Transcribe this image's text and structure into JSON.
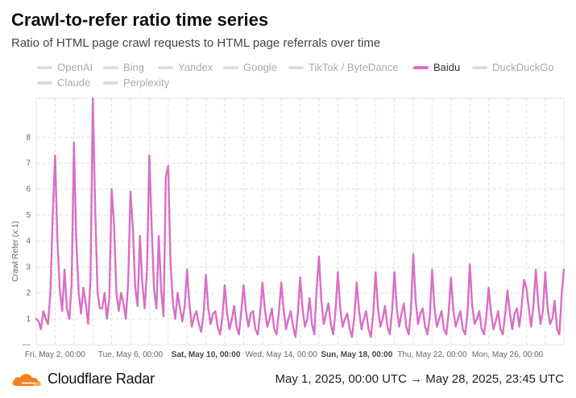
{
  "header": {
    "title": "Crawl-to-refer ratio time series",
    "subtitle": "Ratio of HTML page crawl requests to HTML page referrals over time"
  },
  "legend": {
    "items": [
      {
        "label": "OpenAI",
        "active": false
      },
      {
        "label": "Bing",
        "active": false
      },
      {
        "label": "Yandex",
        "active": false
      },
      {
        "label": "Google",
        "active": false
      },
      {
        "label": "TikTok / ByteDance",
        "active": false
      },
      {
        "label": "Baidu",
        "active": true
      },
      {
        "label": "DuckDuckGo",
        "active": false
      },
      {
        "label": "Claude",
        "active": false
      },
      {
        "label": "Perplexity",
        "active": false
      }
    ]
  },
  "colors": {
    "active_series": "#d96fc4",
    "inactive": "#dddddd",
    "grid": "#e3e3e3"
  },
  "chart_data": {
    "type": "line",
    "ylabel": "Crawl:Refer (x:1)",
    "ylim": [
      0,
      9.5
    ],
    "yticks": [
      1,
      2,
      3,
      4,
      5,
      6,
      7,
      8
    ],
    "x_range": [
      "2025-05-01T00:00",
      "2025-05-28T23:45"
    ],
    "xticks": [
      {
        "label": "Fri, May 2, 00:00",
        "date": "2025-05-02",
        "bold": false
      },
      {
        "label": "Tue, May 6, 00:00",
        "date": "2025-05-06",
        "bold": false
      },
      {
        "label": "Sat, May 10, 00:00",
        "date": "2025-05-10",
        "bold": true
      },
      {
        "label": "Wed, May 14, 00:00",
        "date": "2025-05-14",
        "bold": false
      },
      {
        "label": "Sun, May 18, 00:00",
        "date": "2025-05-18",
        "bold": true
      },
      {
        "label": "Thu, May 22, 00:00",
        "date": "2025-05-22",
        "bold": false
      },
      {
        "label": "Mon, May 26, 00:00",
        "date": "2025-05-26",
        "bold": false
      }
    ],
    "grid": true,
    "series": [
      {
        "name": "Baidu",
        "points": [
          [
            "2025-05-01T00:00",
            1.0
          ],
          [
            "2025-05-01T03:00",
            0.9
          ],
          [
            "2025-05-01T06:00",
            0.6
          ],
          [
            "2025-05-01T09:00",
            1.3
          ],
          [
            "2025-05-01T12:00",
            1.0
          ],
          [
            "2025-05-01T15:00",
            0.8
          ],
          [
            "2025-05-01T18:00",
            2.0
          ],
          [
            "2025-05-01T21:00",
            5.0
          ],
          [
            "2025-05-02T00:00",
            7.3
          ],
          [
            "2025-05-02T03:00",
            4.0
          ],
          [
            "2025-05-02T06:00",
            2.1
          ],
          [
            "2025-05-02T09:00",
            1.3
          ],
          [
            "2025-05-02T12:00",
            2.9
          ],
          [
            "2025-05-02T15:00",
            1.4
          ],
          [
            "2025-05-02T18:00",
            1.0
          ],
          [
            "2025-05-02T21:00",
            2.3
          ],
          [
            "2025-05-03T00:00",
            7.8
          ],
          [
            "2025-05-03T03:00",
            4.0
          ],
          [
            "2025-05-03T06:00",
            2.0
          ],
          [
            "2025-05-03T09:00",
            1.2
          ],
          [
            "2025-05-03T12:00",
            2.2
          ],
          [
            "2025-05-03T15:00",
            1.6
          ],
          [
            "2025-05-03T18:00",
            0.8
          ],
          [
            "2025-05-03T21:00",
            2.5
          ],
          [
            "2025-05-04T00:00",
            9.5
          ],
          [
            "2025-05-04T03:00",
            5.3
          ],
          [
            "2025-05-04T06:00",
            2.0
          ],
          [
            "2025-05-04T09:00",
            1.4
          ],
          [
            "2025-05-04T12:00",
            1.4
          ],
          [
            "2025-05-04T15:00",
            2.0
          ],
          [
            "2025-05-04T18:00",
            1.0
          ],
          [
            "2025-05-04T21:00",
            1.8
          ],
          [
            "2025-05-05T00:00",
            6.0
          ],
          [
            "2025-05-05T03:00",
            4.7
          ],
          [
            "2025-05-05T06:00",
            2.0
          ],
          [
            "2025-05-05T09:00",
            1.3
          ],
          [
            "2025-05-05T12:00",
            2.0
          ],
          [
            "2025-05-05T15:00",
            1.6
          ],
          [
            "2025-05-05T18:00",
            1.0
          ],
          [
            "2025-05-05T21:00",
            2.4
          ],
          [
            "2025-05-06T00:00",
            5.9
          ],
          [
            "2025-05-06T03:00",
            4.5
          ],
          [
            "2025-05-06T06:00",
            2.2
          ],
          [
            "2025-05-06T09:00",
            1.5
          ],
          [
            "2025-05-06T12:00",
            4.2
          ],
          [
            "2025-05-06T15:00",
            2.4
          ],
          [
            "2025-05-06T18:00",
            1.4
          ],
          [
            "2025-05-06T21:00",
            2.9
          ],
          [
            "2025-05-07T00:00",
            7.3
          ],
          [
            "2025-05-07T03:00",
            4.5
          ],
          [
            "2025-05-07T06:00",
            2.1
          ],
          [
            "2025-05-07T09:00",
            1.4
          ],
          [
            "2025-05-07T12:00",
            4.2
          ],
          [
            "2025-05-07T15:00",
            2.1
          ],
          [
            "2025-05-07T18:00",
            1.1
          ],
          [
            "2025-05-07T21:00",
            6.5
          ],
          [
            "2025-05-08T00:00",
            6.9
          ],
          [
            "2025-05-08T03:00",
            3.1
          ],
          [
            "2025-05-08T06:00",
            1.6
          ],
          [
            "2025-05-08T09:00",
            1.0
          ],
          [
            "2025-05-08T12:00",
            2.0
          ],
          [
            "2025-05-08T15:00",
            1.4
          ],
          [
            "2025-05-08T18:00",
            0.9
          ],
          [
            "2025-05-08T21:00",
            1.5
          ],
          [
            "2025-05-09T00:00",
            2.9
          ],
          [
            "2025-05-09T03:00",
            1.6
          ],
          [
            "2025-05-09T06:00",
            0.7
          ],
          [
            "2025-05-09T09:00",
            1.1
          ],
          [
            "2025-05-09T12:00",
            1.3
          ],
          [
            "2025-05-09T15:00",
            0.8
          ],
          [
            "2025-05-09T18:00",
            0.5
          ],
          [
            "2025-05-09T21:00",
            1.2
          ],
          [
            "2025-05-10T00:00",
            2.7
          ],
          [
            "2025-05-10T03:00",
            1.4
          ],
          [
            "2025-05-10T06:00",
            0.8
          ],
          [
            "2025-05-10T09:00",
            1.2
          ],
          [
            "2025-05-10T12:00",
            1.3
          ],
          [
            "2025-05-10T15:00",
            0.7
          ],
          [
            "2025-05-10T18:00",
            0.4
          ],
          [
            "2025-05-10T21:00",
            1.1
          ],
          [
            "2025-05-11T00:00",
            2.3
          ],
          [
            "2025-05-11T03:00",
            1.2
          ],
          [
            "2025-05-11T06:00",
            0.6
          ],
          [
            "2025-05-11T09:00",
            1.0
          ],
          [
            "2025-05-11T12:00",
            1.5
          ],
          [
            "2025-05-11T15:00",
            0.7
          ],
          [
            "2025-05-11T18:00",
            0.4
          ],
          [
            "2025-05-11T21:00",
            1.3
          ],
          [
            "2025-05-12T00:00",
            2.3
          ],
          [
            "2025-05-12T03:00",
            1.3
          ],
          [
            "2025-05-12T06:00",
            0.7
          ],
          [
            "2025-05-12T09:00",
            1.2
          ],
          [
            "2025-05-12T12:00",
            1.3
          ],
          [
            "2025-05-12T15:00",
            0.6
          ],
          [
            "2025-05-12T18:00",
            0.4
          ],
          [
            "2025-05-12T21:00",
            1.2
          ],
          [
            "2025-05-13T00:00",
            2.4
          ],
          [
            "2025-05-13T03:00",
            1.4
          ],
          [
            "2025-05-13T06:00",
            0.7
          ],
          [
            "2025-05-13T09:00",
            1.0
          ],
          [
            "2025-05-13T12:00",
            1.4
          ],
          [
            "2025-05-13T15:00",
            0.6
          ],
          [
            "2025-05-13T18:00",
            0.4
          ],
          [
            "2025-05-13T21:00",
            1.3
          ],
          [
            "2025-05-14T00:00",
            2.4
          ],
          [
            "2025-05-14T03:00",
            1.3
          ],
          [
            "2025-05-14T06:00",
            0.6
          ],
          [
            "2025-05-14T09:00",
            1.0
          ],
          [
            "2025-05-14T12:00",
            1.3
          ],
          [
            "2025-05-14T15:00",
            0.7
          ],
          [
            "2025-05-14T18:00",
            0.3
          ],
          [
            "2025-05-14T21:00",
            1.2
          ],
          [
            "2025-05-15T00:00",
            2.6
          ],
          [
            "2025-05-15T03:00",
            1.4
          ],
          [
            "2025-05-15T06:00",
            0.7
          ],
          [
            "2025-05-15T09:00",
            1.0
          ],
          [
            "2025-05-15T12:00",
            1.8
          ],
          [
            "2025-05-15T15:00",
            0.8
          ],
          [
            "2025-05-15T18:00",
            0.4
          ],
          [
            "2025-05-15T21:00",
            2.2
          ],
          [
            "2025-05-16T00:00",
            3.4
          ],
          [
            "2025-05-16T03:00",
            1.7
          ],
          [
            "2025-05-16T06:00",
            0.8
          ],
          [
            "2025-05-16T09:00",
            1.2
          ],
          [
            "2025-05-16T12:00",
            1.6
          ],
          [
            "2025-05-16T15:00",
            0.8
          ],
          [
            "2025-05-16T18:00",
            0.4
          ],
          [
            "2025-05-16T21:00",
            1.3
          ],
          [
            "2025-05-17T00:00",
            2.8
          ],
          [
            "2025-05-17T03:00",
            1.4
          ],
          [
            "2025-05-17T06:00",
            0.7
          ],
          [
            "2025-05-17T09:00",
            1.0
          ],
          [
            "2025-05-17T12:00",
            1.2
          ],
          [
            "2025-05-17T15:00",
            0.6
          ],
          [
            "2025-05-17T18:00",
            0.3
          ],
          [
            "2025-05-17T21:00",
            1.1
          ],
          [
            "2025-05-18T00:00",
            2.4
          ],
          [
            "2025-05-18T03:00",
            1.3
          ],
          [
            "2025-05-18T06:00",
            0.6
          ],
          [
            "2025-05-18T09:00",
            1.0
          ],
          [
            "2025-05-18T12:00",
            1.3
          ],
          [
            "2025-05-18T15:00",
            0.6
          ],
          [
            "2025-05-18T18:00",
            0.3
          ],
          [
            "2025-05-18T21:00",
            1.2
          ],
          [
            "2025-05-19T00:00",
            2.8
          ],
          [
            "2025-05-19T03:00",
            1.4
          ],
          [
            "2025-05-19T06:00",
            0.7
          ],
          [
            "2025-05-19T09:00",
            1.0
          ],
          [
            "2025-05-19T12:00",
            1.5
          ],
          [
            "2025-05-19T15:00",
            0.7
          ],
          [
            "2025-05-19T18:00",
            0.4
          ],
          [
            "2025-05-19T21:00",
            1.3
          ],
          [
            "2025-05-20T00:00",
            2.8
          ],
          [
            "2025-05-20T03:00",
            1.4
          ],
          [
            "2025-05-20T06:00",
            0.7
          ],
          [
            "2025-05-20T09:00",
            1.2
          ],
          [
            "2025-05-20T12:00",
            1.6
          ],
          [
            "2025-05-20T15:00",
            0.7
          ],
          [
            "2025-05-20T18:00",
            0.4
          ],
          [
            "2025-05-20T21:00",
            1.3
          ],
          [
            "2025-05-21T00:00",
            3.5
          ],
          [
            "2025-05-21T03:00",
            1.7
          ],
          [
            "2025-05-21T06:00",
            0.8
          ],
          [
            "2025-05-21T09:00",
            1.2
          ],
          [
            "2025-05-21T12:00",
            1.4
          ],
          [
            "2025-05-21T15:00",
            0.7
          ],
          [
            "2025-05-21T18:00",
            0.4
          ],
          [
            "2025-05-21T21:00",
            1.1
          ],
          [
            "2025-05-22T00:00",
            2.9
          ],
          [
            "2025-05-22T03:00",
            1.4
          ],
          [
            "2025-05-22T06:00",
            0.7
          ],
          [
            "2025-05-22T09:00",
            1.0
          ],
          [
            "2025-05-22T12:00",
            1.3
          ],
          [
            "2025-05-22T15:00",
            0.6
          ],
          [
            "2025-05-22T18:00",
            0.4
          ],
          [
            "2025-05-22T21:00",
            1.2
          ],
          [
            "2025-05-23T00:00",
            2.6
          ],
          [
            "2025-05-23T03:00",
            1.3
          ],
          [
            "2025-05-23T06:00",
            0.7
          ],
          [
            "2025-05-23T09:00",
            1.0
          ],
          [
            "2025-05-23T12:00",
            1.3
          ],
          [
            "2025-05-23T15:00",
            0.6
          ],
          [
            "2025-05-23T18:00",
            0.4
          ],
          [
            "2025-05-23T21:00",
            1.2
          ],
          [
            "2025-05-24T00:00",
            3.1
          ],
          [
            "2025-05-24T03:00",
            1.5
          ],
          [
            "2025-05-24T06:00",
            0.8
          ],
          [
            "2025-05-24T09:00",
            1.0
          ],
          [
            "2025-05-24T12:00",
            1.3
          ],
          [
            "2025-05-24T15:00",
            0.6
          ],
          [
            "2025-05-24T18:00",
            0.4
          ],
          [
            "2025-05-24T21:00",
            1.1
          ],
          [
            "2025-05-25T00:00",
            2.2
          ],
          [
            "2025-05-25T03:00",
            1.2
          ],
          [
            "2025-05-25T06:00",
            0.6
          ],
          [
            "2025-05-25T09:00",
            0.9
          ],
          [
            "2025-05-25T12:00",
            1.3
          ],
          [
            "2025-05-25T15:00",
            0.6
          ],
          [
            "2025-05-25T18:00",
            0.4
          ],
          [
            "2025-05-25T21:00",
            1.2
          ],
          [
            "2025-05-26T00:00",
            2.1
          ],
          [
            "2025-05-26T03:00",
            1.2
          ],
          [
            "2025-05-26T06:00",
            0.6
          ],
          [
            "2025-05-26T09:00",
            1.2
          ],
          [
            "2025-05-26T12:00",
            1.4
          ],
          [
            "2025-05-26T15:00",
            0.7
          ],
          [
            "2025-05-26T18:00",
            1.5
          ],
          [
            "2025-05-26T21:00",
            2.5
          ],
          [
            "2025-05-27T00:00",
            2.2
          ],
          [
            "2025-05-27T03:00",
            1.4
          ],
          [
            "2025-05-27T06:00",
            0.7
          ],
          [
            "2025-05-27T09:00",
            1.5
          ],
          [
            "2025-05-27T12:00",
            2.9
          ],
          [
            "2025-05-27T15:00",
            1.6
          ],
          [
            "2025-05-27T18:00",
            0.8
          ],
          [
            "2025-05-27T21:00",
            1.3
          ],
          [
            "2025-05-28T00:00",
            2.8
          ],
          [
            "2025-05-28T03:00",
            1.4
          ],
          [
            "2025-05-28T06:00",
            0.8
          ],
          [
            "2025-05-28T09:00",
            1.0
          ],
          [
            "2025-05-28T12:00",
            1.7
          ],
          [
            "2025-05-28T15:00",
            0.6
          ],
          [
            "2025-05-28T18:00",
            0.4
          ],
          [
            "2025-05-28T21:00",
            2.0
          ],
          [
            "2025-05-28T23:45",
            2.9
          ]
        ]
      }
    ]
  },
  "footer": {
    "brand": "Cloudflare Radar",
    "date_range": "May 1, 2025, 00:00 UTC → May 28, 2025, 23:45 UTC"
  }
}
